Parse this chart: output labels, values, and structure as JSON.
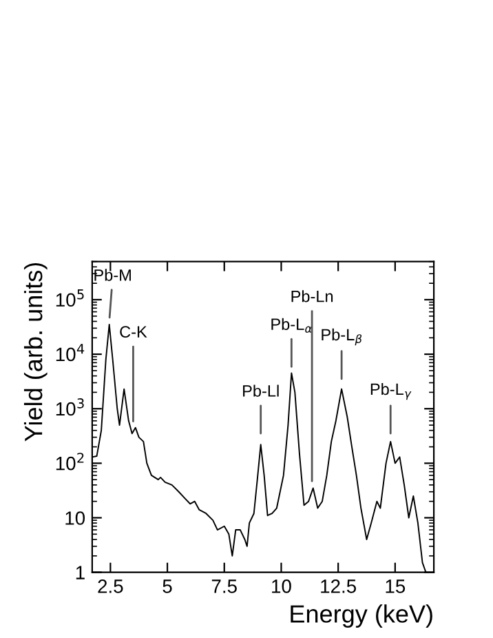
{
  "chart_data": {
    "type": "line",
    "xlabel": "Energy (keV)",
    "ylabel": "Yield (arb. units)",
    "log": "y",
    "grid": false,
    "marker": "none",
    "line_style": "solid",
    "xlim": [
      1.7,
      16.7
    ],
    "ylim": [
      1,
      500000
    ],
    "xticks": [
      2.5,
      5,
      7.5,
      10,
      12.5,
      15
    ],
    "yticks": [
      1,
      10,
      {
        "value": 100,
        "label": "10$^{2}$"
      },
      {
        "value": 1000,
        "label": "10$^{3}$"
      },
      {
        "value": 10000,
        "label": "10$^{4}$"
      },
      {
        "value": 100000,
        "label": "10$^{5}$"
      }
    ],
    "series": [
      {
        "color": "#000000",
        "x": [
          1.7,
          1.9,
          2.1,
          2.3,
          2.45,
          2.6,
          2.8,
          2.9,
          3.1,
          3.3,
          3.45,
          3.6,
          3.75,
          3.95,
          4.1,
          4.3,
          4.6,
          4.7,
          4.9,
          5.2,
          5.5,
          5.8,
          6.0,
          6.2,
          6.4,
          6.7,
          7.0,
          7.2,
          7.5,
          7.7,
          7.85,
          8.0,
          8.2,
          8.4,
          8.5,
          8.6,
          8.8,
          8.95,
          9.1,
          9.25,
          9.4,
          9.6,
          9.8,
          10.1,
          10.3,
          10.45,
          10.6,
          10.8,
          11.0,
          11.2,
          11.4,
          11.6,
          11.8,
          12.0,
          12.2,
          12.4,
          12.65,
          12.9,
          13.1,
          13.3,
          13.5,
          13.75,
          13.95,
          14.2,
          14.35,
          14.6,
          14.8,
          15.0,
          15.2,
          15.4,
          15.6,
          15.8,
          16.0,
          16.2,
          16.35
        ],
        "values": [
          130,
          135,
          400,
          8000,
          35000,
          8000,
          1000,
          500,
          2300,
          600,
          350,
          450,
          300,
          250,
          100,
          60,
          50,
          55,
          45,
          40,
          30,
          22,
          18,
          20,
          14,
          12,
          9,
          6,
          7,
          5,
          2,
          6,
          6,
          4,
          3,
          8,
          12,
          50,
          220,
          60,
          11,
          12,
          15,
          60,
          500,
          4500,
          2000,
          150,
          17,
          20,
          35,
          15,
          20,
          60,
          250,
          600,
          2300,
          700,
          200,
          60,
          15,
          4,
          8,
          20,
          15,
          100,
          250,
          100,
          130,
          40,
          10,
          25,
          8,
          1.5,
          1.0
        ]
      }
    ],
    "annotations": [
      {
        "text": "Pb-M",
        "x": 2.45,
        "y": 40000
      },
      {
        "text": "C-K",
        "x": 3.5,
        "y": 500
      },
      {
        "text": "Pb-Ll",
        "x": 9.1,
        "y": 300
      },
      {
        "text": "Pb-L$_{α}$",
        "x": 10.45,
        "y": 5000
      },
      {
        "text": "Pb-Ln",
        "x": 11.35,
        "y": 40
      },
      {
        "text": "Pb-L$_{β}$",
        "x": 12.65,
        "y": 3000
      },
      {
        "text": "Pb-L$_{γ}$",
        "x": 14.8,
        "y": 300
      }
    ]
  }
}
